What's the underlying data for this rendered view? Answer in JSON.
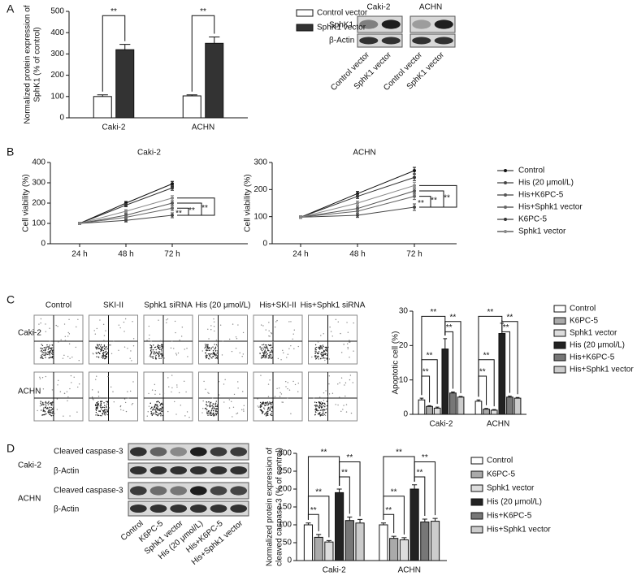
{
  "panels": [
    "A",
    "B",
    "C",
    "D"
  ],
  "blot_a": {
    "cell_lines": [
      "Caki-2",
      "ACHN"
    ],
    "bands": [
      "SphK1",
      "β-Actin"
    ],
    "lanes": [
      "Control vector",
      "SphK1 vector",
      "Control vector",
      "SphK1 vector"
    ]
  },
  "flow_c": {
    "columns": [
      "Control",
      "SKI-II",
      "Sphk1 siRNA",
      "His (20 μmol/L)",
      "His+SKI-II",
      "His+Sphk1 siRNA"
    ],
    "rows": [
      "Caki-2",
      "ACHN"
    ]
  },
  "blot_d": {
    "cell_lines": [
      "Caki-2",
      "ACHN"
    ],
    "bands": [
      "Cleaved caspase-3",
      "β-Actin",
      "Cleaved caspase-3",
      "β-Actin"
    ],
    "lanes": [
      "Control",
      "K6PC-5",
      "Sphk1 vector",
      "His (20 μmol/L)",
      "His+K6PC-5",
      "His+Sphk1 vector"
    ]
  },
  "chart_data": [
    {
      "type": "bar",
      "ylabel": [
        "Normalized protein expression of",
        "SphK1 (% of control)"
      ],
      "categories": [
        "Caki-2",
        "ACHN"
      ],
      "series": [
        {
          "name": "Control vector",
          "color": "#ffffff",
          "values": [
            100,
            103
          ],
          "errors": [
            8,
            5
          ]
        },
        {
          "name": "SphK1 vector",
          "color": "#333333",
          "values": [
            320,
            350
          ],
          "errors": [
            25,
            30
          ]
        }
      ],
      "ylim": [
        0,
        500
      ],
      "yticks": [
        0,
        100,
        200,
        300,
        400,
        500
      ],
      "annotations": [
        "**",
        "**"
      ]
    },
    {
      "type": "line",
      "title": "Caki-2",
      "ylabel": [
        "Cell viability (%)"
      ],
      "categories": [
        "24 h",
        "48 h",
        "72 h"
      ],
      "series": [
        {
          "name": "Control",
          "color": "#111111",
          "values": [
            100,
            200,
            295
          ],
          "errors": [
            5,
            8,
            12
          ]
        },
        {
          "name": "His (20 μmol/L)",
          "color": "#444444",
          "values": [
            100,
            115,
            140
          ],
          "errors": [
            5,
            8,
            12
          ]
        },
        {
          "name": "His+K6PC-5",
          "color": "#555555",
          "values": [
            100,
            140,
            200
          ],
          "errors": [
            5,
            8,
            12
          ]
        },
        {
          "name": "His+Sphk1 vector",
          "color": "#666666",
          "values": [
            100,
            130,
            175
          ],
          "errors": [
            5,
            8,
            12
          ]
        },
        {
          "name": "K6PC-5",
          "color": "#333333",
          "values": [
            100,
            190,
            275
          ],
          "errors": [
            5,
            8,
            12
          ]
        },
        {
          "name": "Sphk1 vector",
          "color": "#888888",
          "values": [
            100,
            160,
            225
          ],
          "errors": [
            5,
            8,
            12
          ]
        }
      ],
      "ylim": [
        0,
        400
      ],
      "yticks": [
        0,
        100,
        200,
        300,
        400
      ],
      "annotations": [
        "**",
        "**",
        "**"
      ]
    },
    {
      "type": "line",
      "title": "ACHN",
      "ylabel": [
        "Cell viability (%)"
      ],
      "categories": [
        "24 h",
        "48 h",
        "72 h"
      ],
      "series": [
        {
          "name": "Control",
          "color": "#111111",
          "values": [
            98,
            185,
            270
          ],
          "errors": [
            5,
            8,
            12
          ]
        },
        {
          "name": "His (20 μmol/L)",
          "color": "#444444",
          "values": [
            98,
            105,
            135
          ],
          "errors": [
            5,
            8,
            12
          ]
        },
        {
          "name": "His+K6PC-5",
          "color": "#555555",
          "values": [
            98,
            130,
            195
          ],
          "errors": [
            5,
            8,
            12
          ]
        },
        {
          "name": "His+Sphk1 vector",
          "color": "#666666",
          "values": [
            98,
            120,
            175
          ],
          "errors": [
            5,
            8,
            12
          ]
        },
        {
          "name": "K6PC-5",
          "color": "#333333",
          "values": [
            98,
            175,
            245
          ],
          "errors": [
            5,
            8,
            12
          ]
        },
        {
          "name": "Sphk1 vector",
          "color": "#888888",
          "values": [
            98,
            150,
            215
          ],
          "errors": [
            5,
            8,
            12
          ]
        }
      ],
      "ylim": [
        0,
        300
      ],
      "yticks": [
        0,
        100,
        200,
        300
      ],
      "annotations": [
        "**",
        "**",
        "**"
      ]
    },
    {
      "type": "bar",
      "ylabel": [
        "Apoptotic cell (%)"
      ],
      "categories": [
        "Caki-2",
        "ACHN"
      ],
      "series": [
        {
          "name": "Control",
          "color": "#ffffff",
          "values": [
            4.2,
            3.8
          ],
          "errors": [
            0.5,
            0.4
          ]
        },
        {
          "name": "K6PC-5",
          "color": "#aaaaaa",
          "values": [
            2.3,
            1.5
          ],
          "errors": [
            0.2,
            0.2
          ]
        },
        {
          "name": "Sphk1 vector",
          "color": "#dddddd",
          "values": [
            1.8,
            1.2
          ],
          "errors": [
            0.3,
            0.2
          ]
        },
        {
          "name": "His (20 μmol/L)",
          "color": "#222222",
          "values": [
            19,
            23.5
          ],
          "errors": [
            3,
            3
          ]
        },
        {
          "name": "His+K6PC-5",
          "color": "#777777",
          "values": [
            6.2,
            5
          ],
          "errors": [
            0.3,
            0.3
          ]
        },
        {
          "name": "His+Sphk1 vector",
          "color": "#cccccc",
          "values": [
            5,
            4.7
          ],
          "errors": [
            0.2,
            0.2
          ]
        }
      ],
      "ylim": [
        0,
        30
      ],
      "yticks": [
        0,
        10,
        20,
        30
      ],
      "annotations": [
        "**",
        "**",
        "**",
        "**",
        "**",
        "**",
        "**",
        "**",
        "**",
        "**"
      ]
    },
    {
      "type": "bar",
      "ylabel": [
        "Normalized protein expression of",
        "cleaved caspase-3 (% of control)"
      ],
      "categories": [
        "Caki-2",
        "ACHN"
      ],
      "series": [
        {
          "name": "Control",
          "color": "#ffffff",
          "values": [
            100,
            100
          ],
          "errors": [
            5,
            5
          ]
        },
        {
          "name": "K6PC-5",
          "color": "#aaaaaa",
          "values": [
            65,
            62
          ],
          "errors": [
            8,
            6
          ]
        },
        {
          "name": "Sphk1 vector",
          "color": "#dddddd",
          "values": [
            52,
            58
          ],
          "errors": [
            4,
            6
          ]
        },
        {
          "name": "His (20 μmol/L)",
          "color": "#222222",
          "values": [
            190,
            200
          ],
          "errors": [
            10,
            12
          ]
        },
        {
          "name": "His+K6PC-5",
          "color": "#777777",
          "values": [
            112,
            108
          ],
          "errors": [
            10,
            8
          ]
        },
        {
          "name": "His+Sphk1 vector",
          "color": "#cccccc",
          "values": [
            105,
            110
          ],
          "errors": [
            10,
            8
          ]
        }
      ],
      "ylim": [
        0,
        300
      ],
      "yticks": [
        0,
        50,
        100,
        150,
        200,
        250,
        300
      ],
      "annotations": [
        "**",
        "**",
        "**",
        "**",
        "**",
        "**",
        "**",
        "**",
        "**",
        "**"
      ]
    }
  ]
}
